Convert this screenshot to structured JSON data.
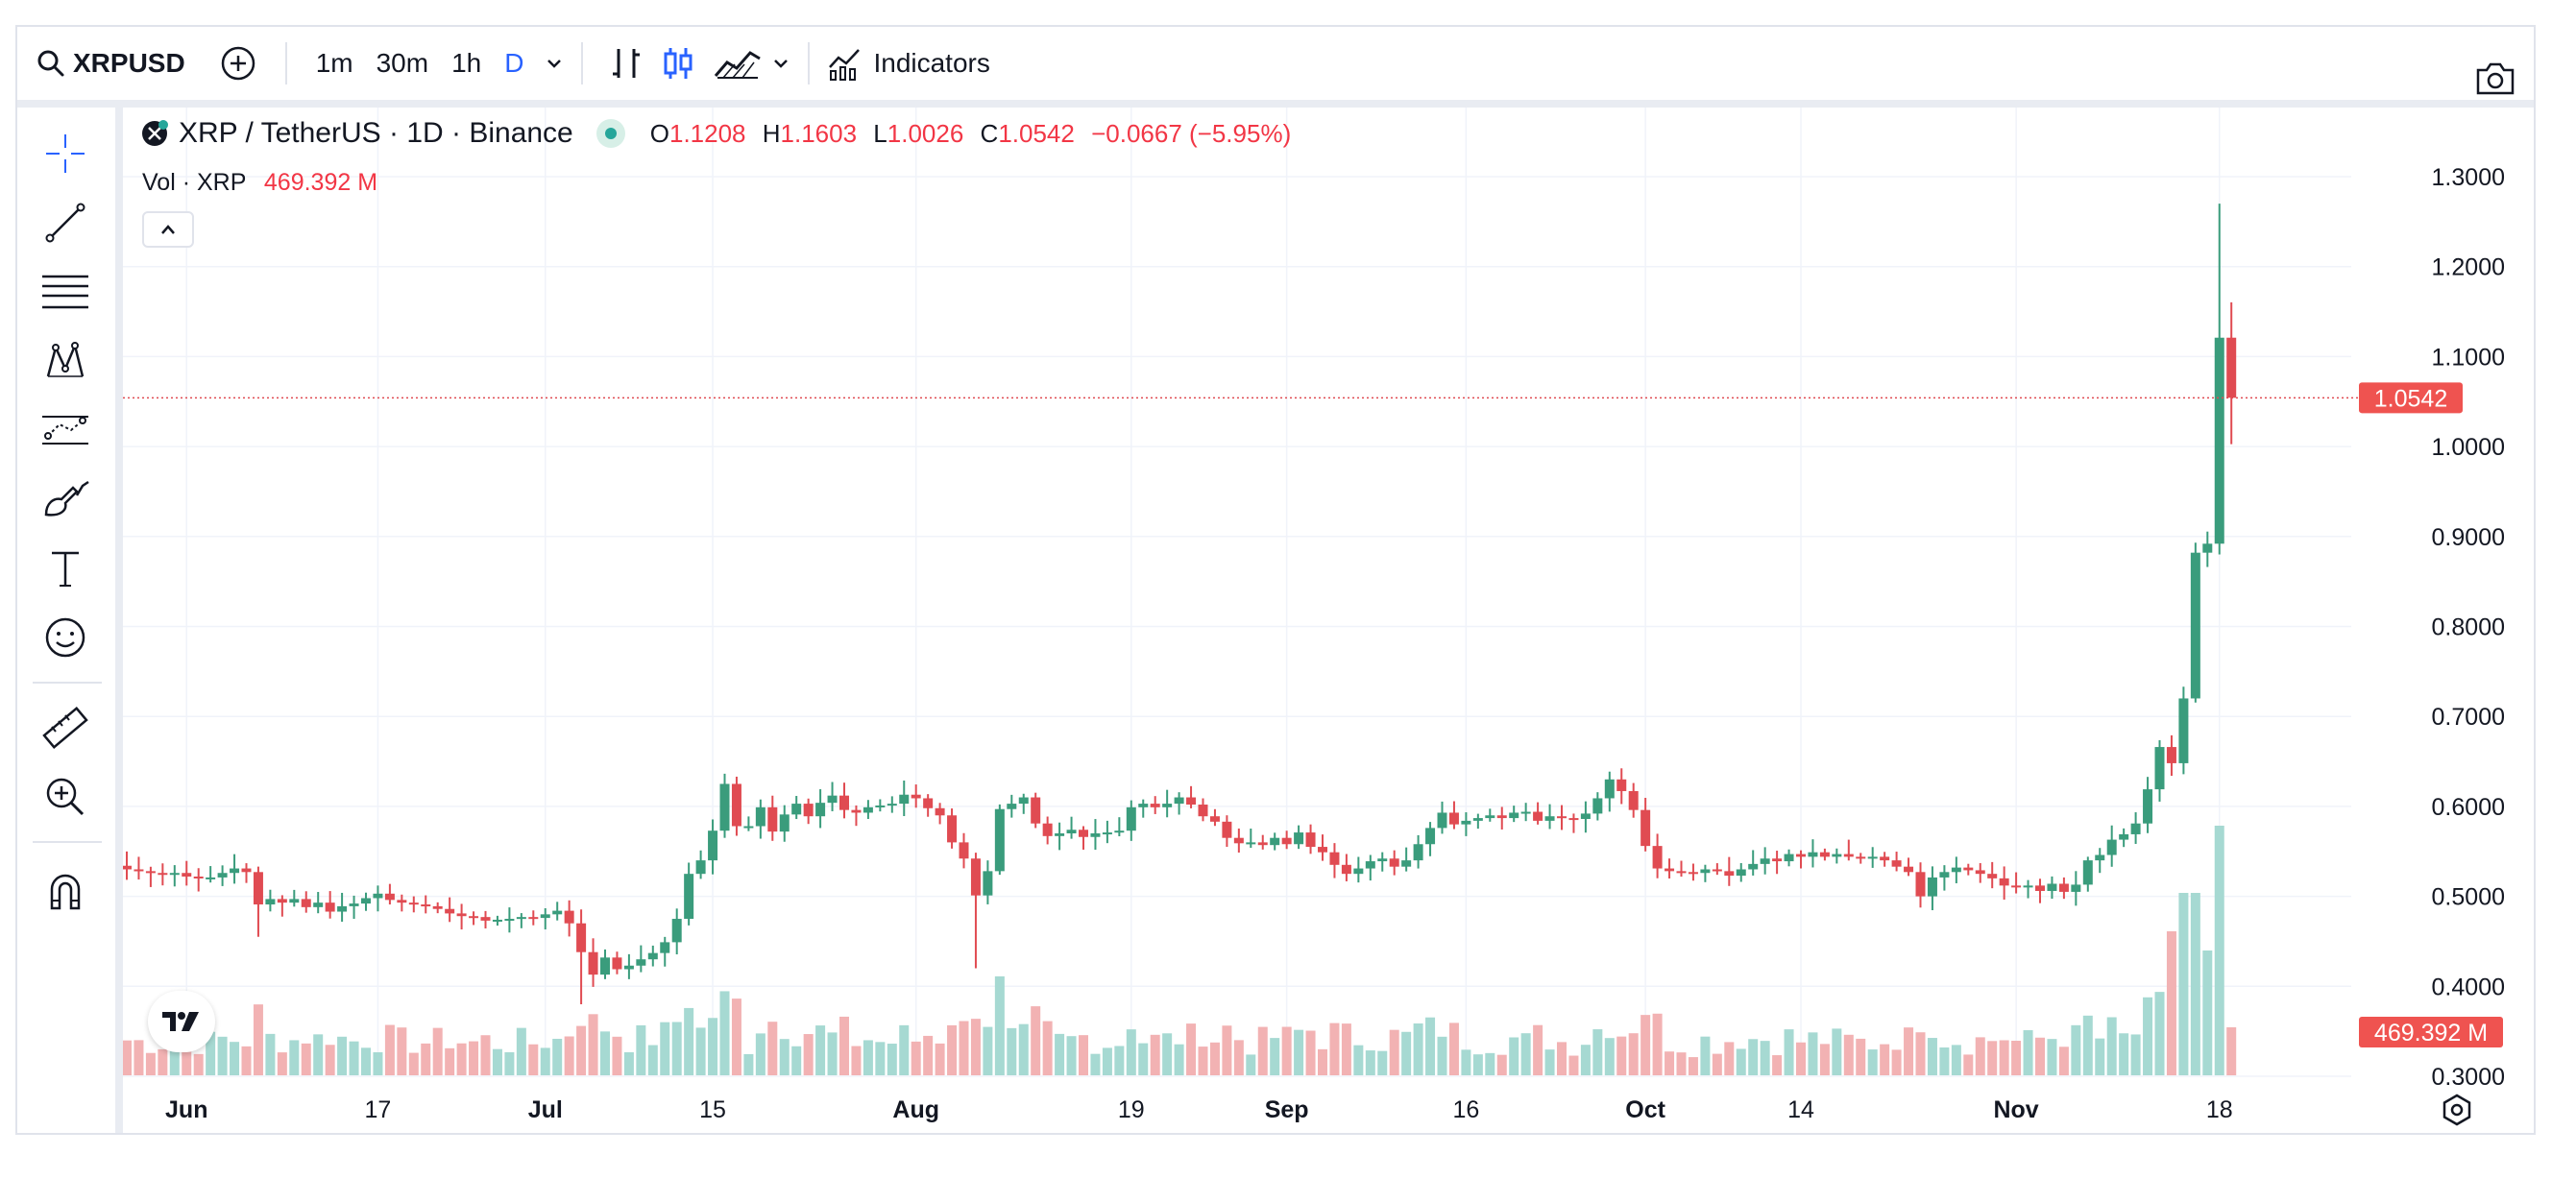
{
  "toolbar": {
    "symbol": "XRPUSD",
    "intervals": [
      "1m",
      "30m",
      "1h",
      "D"
    ],
    "active_interval": "D",
    "indicators_label": "Indicators"
  },
  "legend": {
    "title": "XRP / TetherUS · 1D · Binance",
    "o_label": "O",
    "o": "1.1208",
    "h_label": "H",
    "h": "1.1603",
    "l_label": "L",
    "l": "1.0026",
    "c_label": "C",
    "c": "1.0542",
    "change": "−0.0667 (−5.95%)",
    "vol_label": "Vol · XRP",
    "vol_value": "469.392 M"
  },
  "colors": {
    "up": "#26a69a",
    "down": "#ef5350",
    "up_candle": "#3a9c7c",
    "down_candle": "#e04b52",
    "active": "#2962ff"
  },
  "icons": [
    "search-icon",
    "add-symbol-icon",
    "chevron-down-icon",
    "bar-style-icon",
    "candles-icon",
    "chart-type-icon",
    "indicators-icon",
    "camera-icon",
    "crosshair-icon",
    "trend-line-icon",
    "fib-icon",
    "pattern-icon",
    "forecast-icon",
    "brush-icon",
    "text-icon",
    "emoji-icon",
    "ruler-icon",
    "zoom-icon",
    "magnet-icon",
    "gear-icon",
    "tradingview-logo-icon"
  ],
  "chart_data": {
    "type": "candlestick",
    "y_axis": {
      "min": 0.28,
      "max": 1.32,
      "ticks": [
        "0.3000",
        "0.4000",
        "0.5000",
        "0.6000",
        "0.7000",
        "0.8000",
        "0.9000",
        "1.0000",
        "1.1000",
        "1.2000",
        "1.3000"
      ]
    },
    "x_labels": [
      {
        "i": 5,
        "label": "Jun"
      },
      {
        "i": 21,
        "label": "17"
      },
      {
        "i": 35,
        "label": "Jul"
      },
      {
        "i": 49,
        "label": "15"
      },
      {
        "i": 66,
        "label": "Aug"
      },
      {
        "i": 84,
        "label": "19"
      },
      {
        "i": 97,
        "label": "Sep"
      },
      {
        "i": 112,
        "label": "16"
      },
      {
        "i": 127,
        "label": "Oct"
      },
      {
        "i": 140,
        "label": "14"
      },
      {
        "i": 158,
        "label": "Nov"
      },
      {
        "i": 175,
        "label": "18"
      }
    ],
    "last_price": "1.0542",
    "last_price_value": 1.0542,
    "last_volume": "469.392 M",
    "closes": [
      0.53,
      0.528,
      0.526,
      0.524,
      0.526,
      0.522,
      0.52,
      0.521,
      0.526,
      0.531,
      0.527,
      0.491,
      0.497,
      0.493,
      0.497,
      0.488,
      0.493,
      0.483,
      0.489,
      0.492,
      0.498,
      0.503,
      0.496,
      0.493,
      0.491,
      0.489,
      0.486,
      0.481,
      0.478,
      0.477,
      0.473,
      0.474,
      0.475,
      0.477,
      0.476,
      0.48,
      0.484,
      0.47,
      0.438,
      0.413,
      0.432,
      0.419,
      0.423,
      0.43,
      0.437,
      0.449,
      0.475,
      0.525,
      0.54,
      0.573,
      0.625,
      0.578,
      0.578,
      0.599,
      0.572,
      0.591,
      0.603,
      0.589,
      0.604,
      0.612,
      0.596,
      0.593,
      0.599,
      0.601,
      0.603,
      0.613,
      0.609,
      0.598,
      0.59,
      0.56,
      0.542,
      0.501,
      0.528,
      0.597,
      0.603,
      0.61,
      0.581,
      0.567,
      0.57,
      0.574,
      0.566,
      0.57,
      0.571,
      0.573,
      0.599,
      0.603,
      0.599,
      0.603,
      0.61,
      0.602,
      0.589,
      0.583,
      0.565,
      0.559,
      0.56,
      0.557,
      0.565,
      0.558,
      0.571,
      0.555,
      0.549,
      0.535,
      0.525,
      0.531,
      0.539,
      0.542,
      0.533,
      0.54,
      0.558,
      0.576,
      0.593,
      0.58,
      0.584,
      0.587,
      0.59,
      0.587,
      0.593,
      0.594,
      0.584,
      0.589,
      0.587,
      0.586,
      0.592,
      0.609,
      0.63,
      0.617,
      0.596,
      0.556,
      0.531,
      0.528,
      0.527,
      0.526,
      0.53,
      0.528,
      0.523,
      0.53,
      0.536,
      0.542,
      0.539,
      0.547,
      0.544,
      0.549,
      0.544,
      0.547,
      0.544,
      0.543,
      0.544,
      0.54,
      0.533,
      0.527,
      0.5,
      0.521,
      0.527,
      0.532,
      0.529,
      0.525,
      0.52,
      0.512,
      0.51,
      0.512,
      0.506,
      0.514,
      0.505,
      0.513,
      0.54,
      0.546,
      0.563,
      0.569,
      0.581,
      0.619,
      0.666,
      0.648,
      0.72,
      0.882,
      0.892,
      1.121,
      1.0542
    ]
  }
}
